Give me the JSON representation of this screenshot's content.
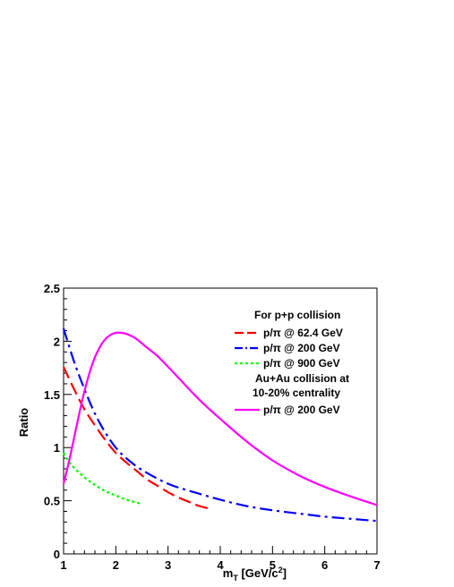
{
  "chart_data": {
    "type": "line",
    "xlabel": "m",
    "xlabel_sub": "T",
    "xlabel_unit_pre": " [GeV/c",
    "xlabel_unit_sup": "2",
    "xlabel_unit_post": "]",
    "ylabel": "Ratio",
    "xlim": [
      1,
      7
    ],
    "ylim": [
      0,
      2.5
    ],
    "x_ticks": [
      "1",
      "2",
      "3",
      "4",
      "5",
      "6",
      "7"
    ],
    "y_ticks": [
      "0",
      "0.5",
      "1",
      "1.5",
      "2",
      "2.5"
    ],
    "grid": false,
    "legend_position": "top-right",
    "legend": {
      "heading_pp": "For p+p collision",
      "heading_auau_1": "Au+Au collision at",
      "heading_auau_2": "10-20% centrality"
    },
    "series": [
      {
        "name": "p/π @ 62.4 GeV",
        "color": "#ff0000",
        "dash": "long-dash",
        "x": [
          1.0,
          1.2,
          1.4,
          1.6,
          1.8,
          2.0,
          2.2,
          2.4,
          2.6,
          2.8,
          3.0,
          3.2,
          3.4,
          3.6,
          3.85
        ],
        "y": [
          1.76,
          1.55,
          1.36,
          1.21,
          1.07,
          0.95,
          0.86,
          0.78,
          0.7,
          0.64,
          0.58,
          0.53,
          0.49,
          0.45,
          0.42
        ]
      },
      {
        "name": "p/π @ 200 GeV",
        "color": "#0000ff",
        "dash": "dash-dot",
        "x": [
          1.0,
          1.2,
          1.4,
          1.6,
          1.8,
          2.0,
          2.2,
          2.5,
          3.0,
          3.5,
          4.0,
          4.5,
          5.0,
          5.5,
          6.0,
          6.5,
          7.0
        ],
        "y": [
          2.12,
          1.81,
          1.55,
          1.32,
          1.14,
          1.0,
          0.9,
          0.79,
          0.66,
          0.58,
          0.51,
          0.45,
          0.41,
          0.38,
          0.35,
          0.33,
          0.31
        ]
      },
      {
        "name": "p/π @ 900 GeV",
        "color": "#00ff00",
        "dash": "dotted",
        "x": [
          1.0,
          1.1,
          1.2,
          1.4,
          1.6,
          1.8,
          2.0,
          2.2,
          2.5
        ],
        "y": [
          0.95,
          0.87,
          0.81,
          0.72,
          0.65,
          0.59,
          0.55,
          0.51,
          0.47
        ]
      },
      {
        "name": "p/π @ 200 GeV",
        "color": "#ff00ff",
        "dash": "solid",
        "x": [
          1.0,
          1.1,
          1.2,
          1.3,
          1.4,
          1.5,
          1.6,
          1.7,
          1.8,
          1.9,
          2.0,
          2.1,
          2.2,
          2.3,
          2.4,
          2.6,
          2.8,
          3.0,
          3.25,
          3.5,
          3.75,
          4.0,
          4.5,
          5.0,
          5.5,
          6.0,
          6.5,
          7.0
        ],
        "y": [
          0.66,
          0.86,
          1.09,
          1.32,
          1.53,
          1.71,
          1.85,
          1.95,
          2.02,
          2.06,
          2.08,
          2.08,
          2.07,
          2.05,
          2.02,
          1.94,
          1.86,
          1.76,
          1.63,
          1.5,
          1.38,
          1.27,
          1.06,
          0.88,
          0.74,
          0.63,
          0.54,
          0.46
        ]
      }
    ]
  }
}
